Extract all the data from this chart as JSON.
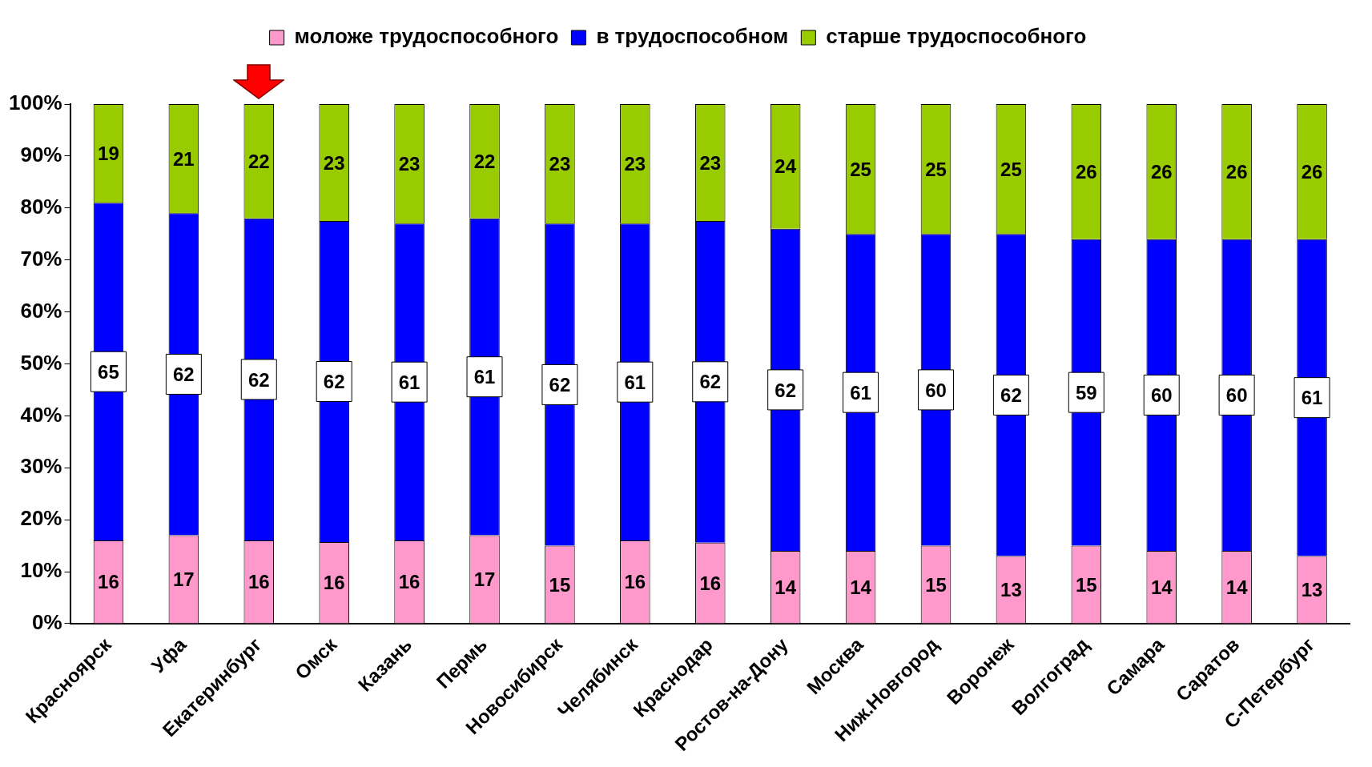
{
  "chart_data": {
    "type": "bar",
    "stacked": true,
    "legend": "top",
    "grid": false,
    "categories": [
      "Красноярск",
      "Уфа",
      "Екатеринбург",
      "Омск",
      "Казань",
      "Пермь",
      "Новосибирск",
      "Челябинск",
      "Краснодар",
      "Ростов-на-Дону",
      "Москва",
      "Ниж.Новгород",
      "Воронеж",
      "Волгоград",
      "Самара",
      "Саратов",
      "С-Петербург"
    ],
    "series": [
      {
        "name": "моложе трудоспособного",
        "color": "#ff99cc",
        "values": [
          16,
          17,
          16,
          15.7,
          16,
          17,
          15,
          16,
          15.6,
          14,
          14,
          15,
          13,
          15,
          14,
          14,
          13
        ],
        "value_labels": [
          "16",
          "17",
          "16",
          "16",
          "16",
          "17",
          "15",
          "16",
          "16",
          "14",
          "14",
          "15",
          "13",
          "15",
          "14",
          "14",
          "13"
        ]
      },
      {
        "name": "в трудоспособном",
        "color": "#0000ff",
        "values": [
          65,
          62,
          62,
          61.8,
          61,
          61,
          62,
          61,
          61.9,
          62,
          61,
          60,
          62,
          59,
          60,
          60,
          61
        ],
        "value_labels": [
          "65",
          "62",
          "62",
          "62",
          "61",
          "61",
          "62",
          "61",
          "62",
          "62",
          "61",
          "60",
          "62",
          "59",
          "60",
          "60",
          "61"
        ]
      },
      {
        "name": "старше трудоспособного",
        "color": "#99cc00",
        "values": [
          19,
          21,
          22,
          22.5,
          23,
          22,
          23,
          23,
          22.5,
          24,
          25,
          25,
          25,
          26,
          26,
          26,
          26
        ],
        "value_labels": [
          "19",
          "21",
          "22",
          "23",
          "23",
          "22",
          "23",
          "23",
          "23",
          "24",
          "25",
          "25",
          "25",
          "26",
          "26",
          "26",
          "26"
        ]
      }
    ],
    "ylim": [
      0,
      100
    ],
    "yticks": [
      {
        "value": 0,
        "label": "0%"
      },
      {
        "value": 10,
        "label": "10%"
      },
      {
        "value": 20,
        "label": "20%"
      },
      {
        "value": 30,
        "label": "30%"
      },
      {
        "value": 40,
        "label": "40%"
      },
      {
        "value": 50,
        "label": "50%"
      },
      {
        "value": 60,
        "label": "60%"
      },
      {
        "value": 70,
        "label": "70%"
      },
      {
        "value": 80,
        "label": "80%"
      },
      {
        "value": 90,
        "label": "90%"
      },
      {
        "value": 100,
        "label": "100%"
      }
    ]
  }
}
